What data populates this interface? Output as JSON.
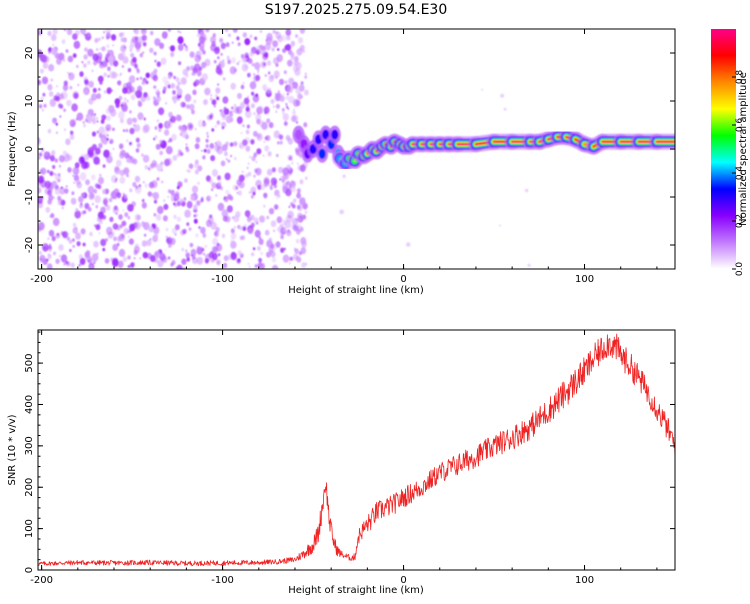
{
  "title": "S197.2025.275.09.54.E30",
  "colors": {
    "background": "#ffffff",
    "snr_line": "#ee2222",
    "axis": "#000000"
  },
  "chart_data": [
    {
      "type": "heatmap",
      "name": "spectrogram",
      "xlabel": "Height of straight line (km)",
      "ylabel": "Frequency (Hz)",
      "xlim": [
        -202,
        150
      ],
      "ylim": [
        -25,
        25
      ],
      "xticks": [
        -200,
        -100,
        0,
        100
      ],
      "yticks": [
        -20,
        -10,
        0,
        10,
        20
      ],
      "noise_region": {
        "x": [
          -202,
          -58
        ],
        "y": [
          -25,
          25
        ],
        "peak_amplitude": 0.15
      },
      "transition_blobs": [
        {
          "x": -58,
          "y": 3,
          "amplitude": 0.15
        },
        {
          "x": -55,
          "y": 1,
          "amplitude": 0.2
        },
        {
          "x": -53,
          "y": -1,
          "amplitude": 0.25
        },
        {
          "x": -50,
          "y": 0,
          "amplitude": 0.3
        },
        {
          "x": -47,
          "y": 2,
          "amplitude": 0.3
        },
        {
          "x": -45,
          "y": -1,
          "amplitude": 0.35
        },
        {
          "x": -43,
          "y": 3,
          "amplitude": 0.3
        },
        {
          "x": -40,
          "y": 1,
          "amplitude": 0.35
        },
        {
          "x": -38,
          "y": 3,
          "amplitude": 0.3
        },
        {
          "x": -36,
          "y": -1,
          "amplitude": 0.4
        },
        {
          "x": -34,
          "y": -2,
          "amplitude": 0.4
        }
      ],
      "signal_ridge": {
        "x": [
          -35,
          -32,
          -30,
          -27,
          -25,
          -22,
          -20,
          -17,
          -15,
          -12,
          -10,
          -7,
          -5,
          -2,
          0,
          3,
          5,
          10,
          15,
          20,
          25,
          30,
          40,
          50,
          60,
          70,
          75,
          80,
          85,
          90,
          95,
          100,
          105,
          110,
          120,
          130,
          140,
          150
        ],
        "y": [
          -2,
          -3,
          -2,
          -2.5,
          -1,
          -1.5,
          -1,
          0,
          -0.5,
          0.5,
          1,
          0.5,
          1.5,
          1,
          0.5,
          0.5,
          1,
          1,
          1,
          1,
          1,
          1,
          1,
          1.5,
          1.5,
          1.5,
          1.5,
          2,
          2.5,
          2.5,
          2,
          1,
          0.5,
          1.5,
          1.5,
          1.5,
          1.5,
          1.5
        ],
        "amplitude": [
          0.45,
          0.5,
          0.55,
          0.6,
          0.65,
          0.7,
          0.8,
          0.8,
          0.85,
          0.9,
          0.9,
          0.9,
          0.92,
          0.95,
          0.9,
          0.95,
          0.95,
          0.98,
          0.98,
          0.98,
          0.98,
          0.98,
          0.98,
          0.95,
          0.98,
          0.98,
          0.98,
          0.98,
          0.95,
          0.95,
          0.95,
          0.8,
          0.75,
          0.95,
          0.98,
          0.98,
          0.98,
          0.98
        ]
      },
      "colorbar": {
        "label": "Normalized spectral amplitude",
        "ticks": [
          "0.0",
          "0.2",
          "0.4",
          "0.6",
          "0.8"
        ],
        "range": [
          0,
          1
        ],
        "colormap": [
          "#ffffff",
          "#c27bff",
          "#8800ff",
          "#0000ff",
          "#00ffff",
          "#00ff00",
          "#ffff00",
          "#ff8800",
          "#ff0000",
          "#ff0088"
        ]
      }
    },
    {
      "type": "line",
      "name": "snr",
      "xlabel": "Height of straight line (km)",
      "ylabel": "SNR (10 * v/v)",
      "xlim": [
        -202,
        150
      ],
      "ylim": [
        0,
        580
      ],
      "xticks": [
        -200,
        -100,
        0,
        100
      ],
      "yticks": [
        0,
        100,
        200,
        300,
        400,
        500
      ],
      "series": [
        {
          "name": "SNR",
          "x": [
            -202,
            -180,
            -160,
            -140,
            -120,
            -100,
            -80,
            -70,
            -60,
            -55,
            -50,
            -47,
            -45,
            -43,
            -41,
            -39,
            -37,
            -35,
            -33,
            -30,
            -27,
            -25,
            -22,
            -18,
            -15,
            -10,
            -5,
            0,
            10,
            20,
            30,
            40,
            50,
            60,
            70,
            80,
            90,
            100,
            105,
            110,
            113,
            115,
            118,
            120,
            125,
            130,
            135,
            140,
            145,
            150
          ],
          "values": [
            15,
            18,
            17,
            18,
            16,
            17,
            18,
            20,
            25,
            40,
            60,
            90,
            150,
            215,
            120,
            75,
            50,
            40,
            35,
            30,
            30,
            80,
            100,
            120,
            140,
            150,
            160,
            175,
            200,
            235,
            255,
            275,
            300,
            320,
            345,
            385,
            430,
            480,
            510,
            535,
            550,
            545,
            535,
            520,
            495,
            465,
            430,
            390,
            350,
            300
          ],
          "noise": [
            10,
            12,
            12,
            12,
            12,
            12,
            12,
            12,
            15,
            25,
            40,
            50,
            60,
            50,
            50,
            40,
            30,
            20,
            15,
            15,
            20,
            40,
            40,
            50,
            50,
            50,
            50,
            50,
            50,
            50,
            55,
            55,
            55,
            60,
            60,
            65,
            70,
            70,
            70,
            70,
            70,
            70,
            70,
            70,
            65,
            65,
            60,
            60,
            60,
            60
          ]
        }
      ]
    }
  ]
}
